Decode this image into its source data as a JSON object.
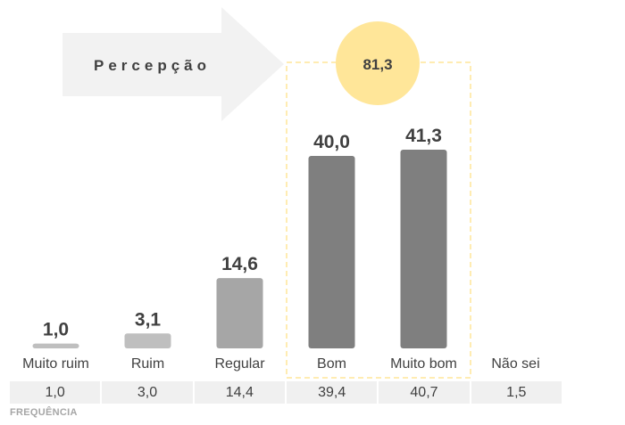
{
  "chart_data": {
    "type": "bar",
    "categories": [
      "Muito ruim",
      "Ruim",
      "Regular",
      "Bom",
      "Muito bom",
      "Não sei"
    ],
    "values": [
      1.0,
      3.1,
      14.6,
      40.0,
      41.3,
      null
    ],
    "value_labels": [
      "1,0",
      "3,1",
      "14,6",
      "40,0",
      "41,3",
      ""
    ],
    "bar_colors": [
      "#bfbfbf",
      "#bfbfbf",
      "#a6a6a6",
      "#7f7f7f",
      "#7f7f7f",
      "#bfbfbf"
    ],
    "ylim": [
      0,
      45
    ],
    "grid": false,
    "highlight": {
      "categories": [
        "Bom",
        "Muito bom"
      ],
      "total_label": "81,3",
      "circle_color": "#ffe699",
      "box_color": "#ffe699"
    },
    "arrow": {
      "label": "Percepção",
      "color": "#f2f2f2"
    }
  },
  "frequency": {
    "label": "FREQUÊNCIA",
    "values": [
      "1,0",
      "3,0",
      "14,4",
      "39,4",
      "40,7",
      "1,5"
    ]
  }
}
